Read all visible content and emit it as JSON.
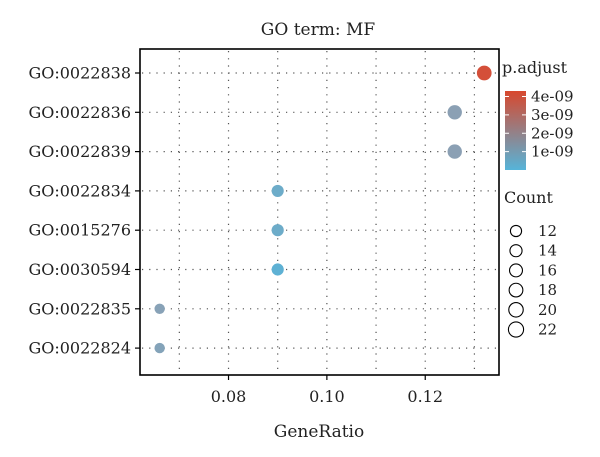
{
  "chart_data": {
    "type": "scatter",
    "title": "GO term: MF",
    "xlabel": "GeneRatio",
    "ylabel": "",
    "xlim": [
      0.062,
      0.135
    ],
    "x_ticks": [
      0.08,
      0.1,
      0.12
    ],
    "x_tick_labels": [
      "0.08",
      "0.10",
      "0.12"
    ],
    "grid": true,
    "categories": [
      "GO:0022838",
      "GO:0022836",
      "GO:0022839",
      "GO:0022834",
      "GO:0015276",
      "GO:0030594",
      "GO:0022835",
      "GO:0022824"
    ],
    "points": [
      {
        "term": "GO:0022838",
        "gene_ratio": 0.132,
        "count": 22,
        "p_adjust": 4.1e-09
      },
      {
        "term": "GO:0022836",
        "gene_ratio": 0.126,
        "count": 21,
        "p_adjust": 1.4e-09
      },
      {
        "term": "GO:0022839",
        "gene_ratio": 0.126,
        "count": 21,
        "p_adjust": 1.4e-09
      },
      {
        "term": "GO:0022834",
        "gene_ratio": 0.09,
        "count": 15,
        "p_adjust": 6e-10
      },
      {
        "term": "GO:0015276",
        "gene_ratio": 0.09,
        "count": 15,
        "p_adjust": 6e-10
      },
      {
        "term": "GO:0030594",
        "gene_ratio": 0.09,
        "count": 15,
        "p_adjust": 2e-10
      },
      {
        "term": "GO:0022835",
        "gene_ratio": 0.066,
        "count": 11,
        "p_adjust": 1.3e-09
      },
      {
        "term": "GO:0022824",
        "gene_ratio": 0.066,
        "count": 11,
        "p_adjust": 1.2e-09
      }
    ],
    "color_legend": {
      "title": "p.adjust",
      "low_color": "#56B4D9",
      "high_color": "#D8482E",
      "min": 0,
      "max": 4.3e-09,
      "ticks": [
        4e-09,
        3e-09,
        2e-09,
        1e-09
      ],
      "tick_labels": [
        "4e-09",
        "3e-09",
        "2e-09",
        "1e-09"
      ]
    },
    "size_legend": {
      "title": "Count",
      "values": [
        12,
        14,
        16,
        18,
        20,
        22
      ],
      "labels": [
        "12",
        "14",
        "16",
        "18",
        "20",
        "22"
      ]
    },
    "legend_position": "right"
  }
}
